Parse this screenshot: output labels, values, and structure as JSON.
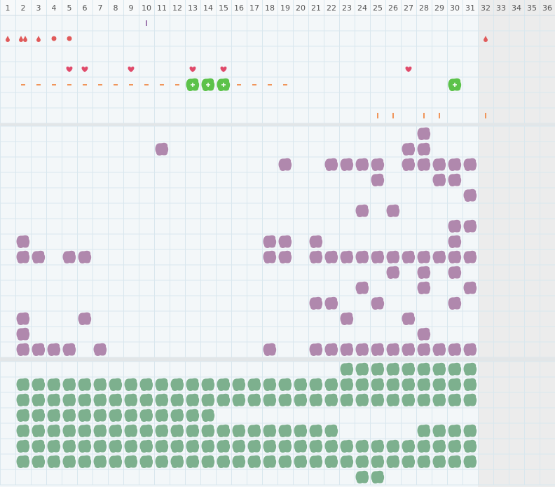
{
  "header": {
    "columns": [
      1,
      2,
      3,
      4,
      5,
      6,
      7,
      8,
      9,
      10,
      11,
      12,
      13,
      14,
      15,
      16,
      17,
      18,
      19,
      20,
      21,
      22,
      23,
      24,
      25,
      26,
      27,
      28,
      29,
      30,
      31,
      32,
      33,
      34,
      35,
      36
    ]
  },
  "sections": [
    {
      "rows": [
        [
          {
            "day": 10,
            "marker": "tick-purple"
          }
        ],
        [
          {
            "day": 1,
            "marker": "drop"
          },
          {
            "day": 2,
            "marker": "double-drop"
          },
          {
            "day": 3,
            "marker": "drop"
          },
          {
            "day": 4,
            "marker": "dot"
          },
          {
            "day": 5,
            "marker": "dot"
          },
          {
            "day": 32,
            "marker": "drop"
          }
        ],
        [],
        [
          {
            "day": 5,
            "marker": "heart"
          },
          {
            "day": 6,
            "marker": "heart"
          },
          {
            "day": 9,
            "marker": "heart"
          },
          {
            "day": 13,
            "marker": "heart"
          },
          {
            "day": 15,
            "marker": "heart"
          },
          {
            "day": 27,
            "marker": "heart"
          }
        ],
        [
          {
            "day": 2,
            "marker": "dash"
          },
          {
            "day": 3,
            "marker": "dash"
          },
          {
            "day": 4,
            "marker": "dash"
          },
          {
            "day": 5,
            "marker": "dash"
          },
          {
            "day": 6,
            "marker": "dash"
          },
          {
            "day": 7,
            "marker": "dash"
          },
          {
            "day": 8,
            "marker": "dash"
          },
          {
            "day": 9,
            "marker": "dash"
          },
          {
            "day": 10,
            "marker": "dash"
          },
          {
            "day": 11,
            "marker": "dash"
          },
          {
            "day": 12,
            "marker": "dash"
          },
          {
            "day": 13,
            "marker": "plus"
          },
          {
            "day": 14,
            "marker": "plus"
          },
          {
            "day": 15,
            "marker": "plus"
          },
          {
            "day": 16,
            "marker": "dash"
          },
          {
            "day": 17,
            "marker": "dash"
          },
          {
            "day": 18,
            "marker": "dash"
          },
          {
            "day": 19,
            "marker": "dash"
          },
          {
            "day": 30,
            "marker": "plus"
          }
        ],
        [],
        [
          {
            "day": 25,
            "marker": "tick-orange"
          },
          {
            "day": 26,
            "marker": "tick-orange"
          },
          {
            "day": 28,
            "marker": "tick-orange"
          },
          {
            "day": 29,
            "marker": "tick-orange"
          },
          {
            "day": 32,
            "marker": "tick-orange"
          }
        ]
      ]
    },
    {
      "marker": "blob",
      "color": "#b088ad",
      "rows": [
        [
          28
        ],
        [
          11,
          27,
          28
        ],
        [
          19,
          22,
          23,
          24,
          25,
          27,
          28,
          29,
          30,
          31
        ],
        [
          25,
          29,
          30
        ],
        [
          31
        ],
        [
          24,
          26
        ],
        [
          30,
          31
        ],
        [
          2,
          18,
          19,
          21,
          30
        ],
        [
          2,
          3,
          5,
          6,
          18,
          19,
          21,
          22,
          23,
          24,
          25,
          26,
          27,
          28,
          29,
          30,
          31
        ],
        [
          26,
          28,
          30
        ],
        [
          24,
          28,
          31
        ],
        [
          21,
          22,
          25,
          30
        ],
        [
          2,
          6,
          23,
          27
        ],
        [
          2,
          28
        ],
        [
          2,
          3,
          4,
          5,
          7,
          18,
          21,
          22,
          23,
          24,
          25,
          26,
          27,
          28,
          29,
          30,
          31
        ]
      ]
    },
    {
      "marker": "blob",
      "color": "#7db08e",
      "rows": [
        [
          23,
          24,
          25,
          26,
          27,
          28,
          29,
          30,
          31
        ],
        [
          2,
          3,
          4,
          5,
          6,
          7,
          8,
          9,
          10,
          11,
          12,
          13,
          14,
          15,
          16,
          17,
          18,
          19,
          20,
          21,
          22,
          23,
          24,
          25,
          26,
          27,
          28,
          29,
          30,
          31
        ],
        [
          2,
          3,
          4,
          5,
          6,
          7,
          8,
          9,
          10,
          11,
          12,
          13,
          14,
          15,
          16,
          17,
          18,
          19,
          20,
          21,
          22,
          23,
          24,
          25,
          26,
          27,
          28,
          29,
          30,
          31
        ],
        [
          2,
          3,
          4,
          5,
          6,
          7,
          8,
          9,
          10,
          11,
          12,
          13,
          14
        ],
        [
          2,
          3,
          4,
          5,
          6,
          7,
          8,
          9,
          10,
          11,
          12,
          13,
          14,
          15,
          16,
          17,
          18,
          19,
          20,
          21,
          22,
          28,
          29,
          30,
          31
        ],
        [
          2,
          3,
          4,
          5,
          6,
          7,
          8,
          9,
          10,
          11,
          12,
          13,
          14,
          15,
          16,
          17,
          18,
          19,
          20,
          21,
          22,
          23,
          24,
          25,
          26,
          27,
          28,
          29,
          30,
          31
        ],
        [
          2,
          3,
          4,
          5,
          6,
          7,
          8,
          9,
          10,
          11,
          12,
          13,
          14,
          15,
          16,
          17,
          18,
          19,
          20,
          21,
          22,
          23,
          24,
          25,
          26,
          27,
          28,
          29,
          30,
          31
        ],
        [
          24,
          25
        ]
      ]
    }
  ]
}
